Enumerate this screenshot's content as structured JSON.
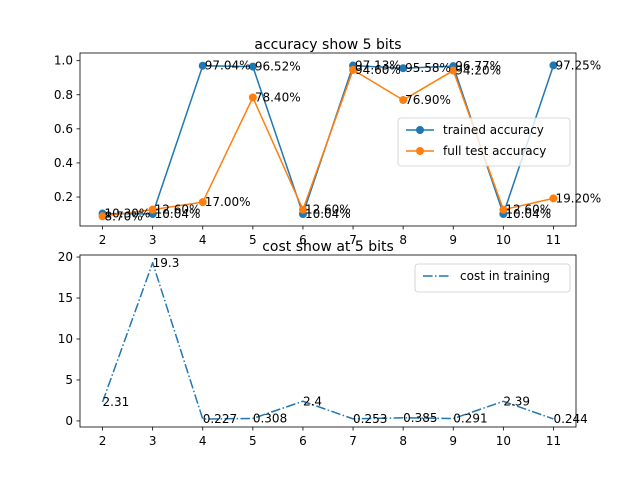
{
  "chart_data": [
    {
      "type": "line",
      "title": "accuracy show 5 bits",
      "x": [
        2,
        3,
        4,
        5,
        6,
        7,
        8,
        9,
        10,
        11
      ],
      "xlim": [
        1.55,
        11.45
      ],
      "ylim": [
        0.03,
        1.045
      ],
      "yticks": [
        0.2,
        0.4,
        0.6,
        0.8,
        1.0
      ],
      "ytick_labels": [
        "0.2",
        "0.4",
        "0.6",
        "0.8",
        "1.0"
      ],
      "grid": false,
      "legend_position": "center-right",
      "series": [
        {
          "name": "trained accuracy",
          "color": "#1f77b4",
          "marker": "circle",
          "linestyle": "solid",
          "values": [
            0.103,
            0.1004,
            0.9704,
            0.9652,
            0.1004,
            0.9713,
            0.9558,
            0.9677,
            0.1004,
            0.9725
          ],
          "labels": [
            "10.30%",
            "10.04%",
            "97.04%",
            "96.52%",
            "10.04%",
            "97.13%",
            "95.58%",
            "96.77%",
            "10.04%",
            "97.25%"
          ]
        },
        {
          "name": "full test accuracy",
          "color": "#ff7f0e",
          "marker": "circle",
          "linestyle": "solid",
          "values": [
            0.087,
            0.126,
            0.17,
            0.784,
            0.126,
            0.946,
            0.769,
            0.942,
            0.126,
            0.192
          ],
          "labels": [
            "8.70%",
            "12.60%",
            "17.00%",
            "78.40%",
            "12.60%",
            "94.60%",
            "76.90%",
            "94.20%",
            "12.60%",
            "19.20%"
          ]
        }
      ]
    },
    {
      "type": "line",
      "title": "cost show at 5 bits",
      "x": [
        2,
        3,
        4,
        5,
        6,
        7,
        8,
        9,
        10,
        11
      ],
      "xlim": [
        1.55,
        11.45
      ],
      "ylim": [
        -0.74,
        20.25
      ],
      "yticks": [
        0,
        5,
        10,
        15,
        20
      ],
      "ytick_labels": [
        "0",
        "5",
        "10",
        "15",
        "20"
      ],
      "grid": false,
      "legend_position": "top-right",
      "series": [
        {
          "name": "cost in training",
          "color": "#1f77b4",
          "marker": "none",
          "linestyle": "dashdot",
          "values": [
            2.31,
            19.3,
            0.227,
            0.308,
            2.4,
            0.253,
            0.385,
            0.291,
            2.39,
            0.244
          ],
          "labels": [
            "2.31",
            "19.3",
            "0.227",
            "0.308",
            "2.4",
            "0.253",
            "0.385",
            "0.291",
            "2.39",
            "0.244"
          ]
        }
      ]
    }
  ]
}
